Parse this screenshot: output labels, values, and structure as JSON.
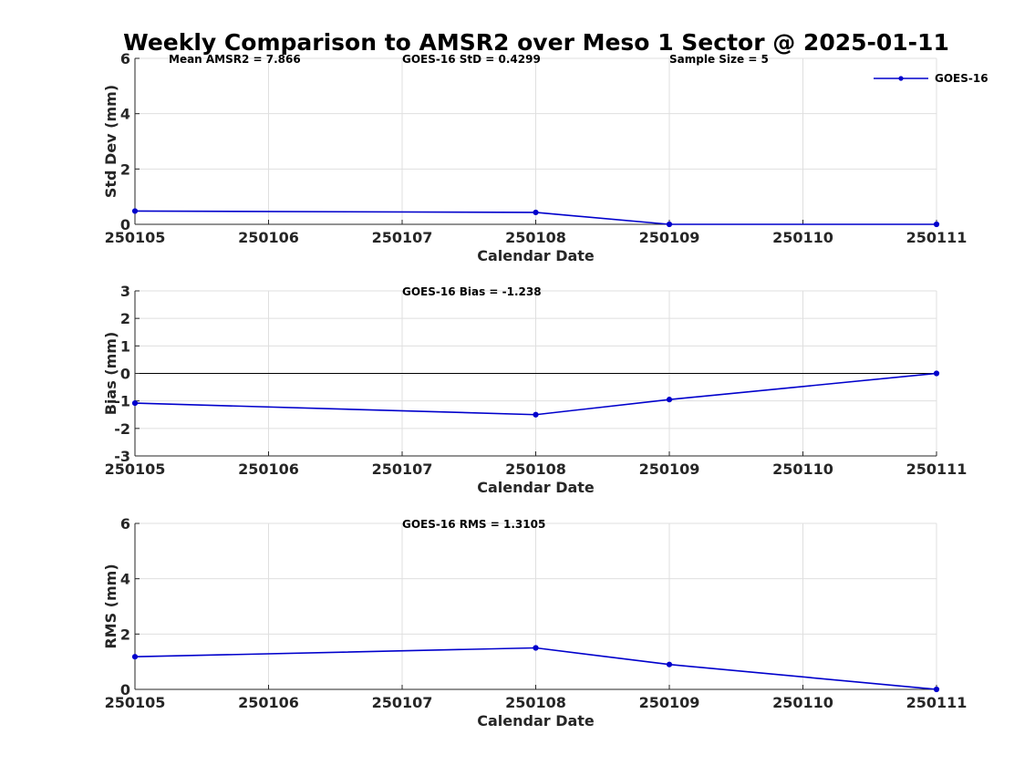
{
  "title": "Weekly Comparison to AMSR2 over Meso 1 Sector @ 2025-01-11",
  "line_color": "#0000cc",
  "chart_data": [
    {
      "type": "line",
      "id": "std",
      "xlabel": "Calendar Date",
      "ylabel": "Std Dev (mm)",
      "categories": [
        "250105",
        "250106",
        "250107",
        "250108",
        "250109",
        "250110",
        "250111"
      ],
      "ylim": [
        0,
        6
      ],
      "yticks": [
        "0",
        "2",
        "4",
        "6"
      ],
      "grid": true,
      "zero_line": false,
      "series": [
        {
          "name": "GOES-16",
          "x": [
            0,
            3,
            4,
            6
          ],
          "values": [
            0.48,
            0.43,
            0.0,
            0.0
          ]
        }
      ],
      "annotations": [
        "Mean AMSR2 = 7.866",
        "GOES-16 StD = 0.4299",
        "Sample Size = 5"
      ],
      "legend": {
        "position": "top-right",
        "entries": [
          "GOES-16"
        ]
      }
    },
    {
      "type": "line",
      "id": "bias",
      "xlabel": "Calendar Date",
      "ylabel": "Bias (mm)",
      "categories": [
        "250105",
        "250106",
        "250107",
        "250108",
        "250109",
        "250110",
        "250111"
      ],
      "ylim": [
        -3,
        3
      ],
      "yticks": [
        "-3",
        "-2",
        "-1",
        "0",
        "1",
        "2",
        "3"
      ],
      "grid": true,
      "zero_line": true,
      "series": [
        {
          "name": "GOES-16",
          "x": [
            0,
            3,
            4,
            6
          ],
          "values": [
            -1.08,
            -1.5,
            -0.95,
            0.0
          ]
        }
      ],
      "annotations": [
        "GOES-16 Bias  = -1.238"
      ]
    },
    {
      "type": "line",
      "id": "rms",
      "xlabel": "Calendar Date",
      "ylabel": "RMS (mm)",
      "categories": [
        "250105",
        "250106",
        "250107",
        "250108",
        "250109",
        "250110",
        "250111"
      ],
      "ylim": [
        0,
        6
      ],
      "yticks": [
        "0",
        "2",
        "4",
        "6"
      ],
      "grid": true,
      "zero_line": false,
      "series": [
        {
          "name": "GOES-16",
          "x": [
            0,
            3,
            4,
            6
          ],
          "values": [
            1.18,
            1.5,
            0.9,
            0.0
          ]
        }
      ],
      "annotations": [
        "GOES-16 RMS = 1.3105"
      ]
    }
  ]
}
